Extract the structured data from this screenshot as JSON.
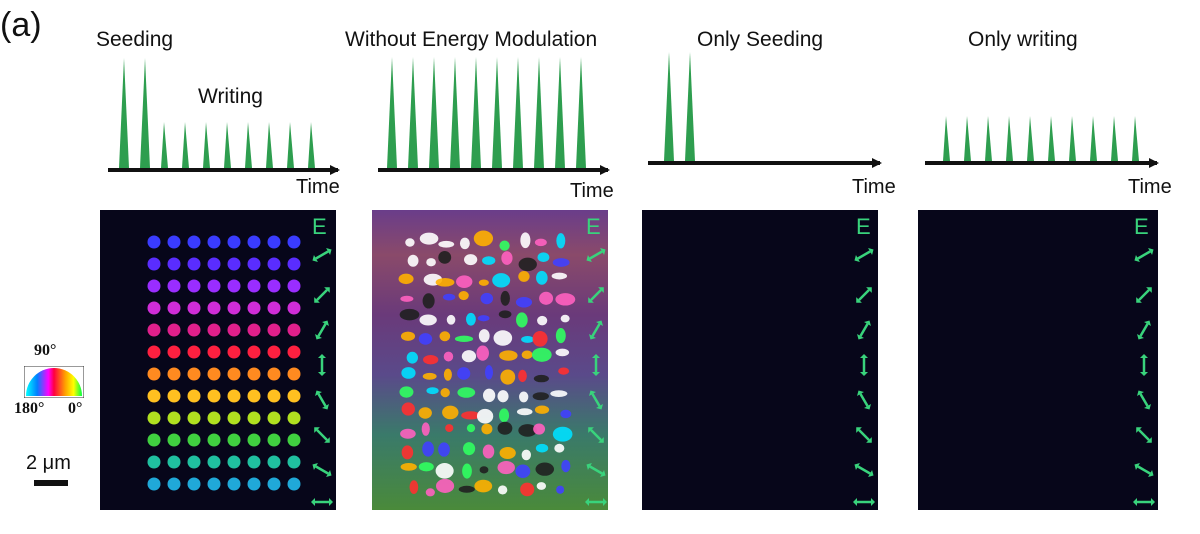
{
  "panel_label": "(a)",
  "schemes": [
    {
      "title": "Seeding",
      "subtitle": "Writing",
      "axis_label": "Time"
    },
    {
      "title": "Without Energy Modulation",
      "axis_label": "Time"
    },
    {
      "title": "Only Seeding",
      "axis_label": "Time"
    },
    {
      "title": "Only writing",
      "axis_label": "Time"
    }
  ],
  "field_label": "E",
  "legend": {
    "top": "90°",
    "left": "180°",
    "right": "0°"
  },
  "scale_bar": "2 μm",
  "colors": {
    "pulse": "#2e9e4f",
    "arrow": "#39d37c",
    "image_bg": "#07061a"
  }
}
